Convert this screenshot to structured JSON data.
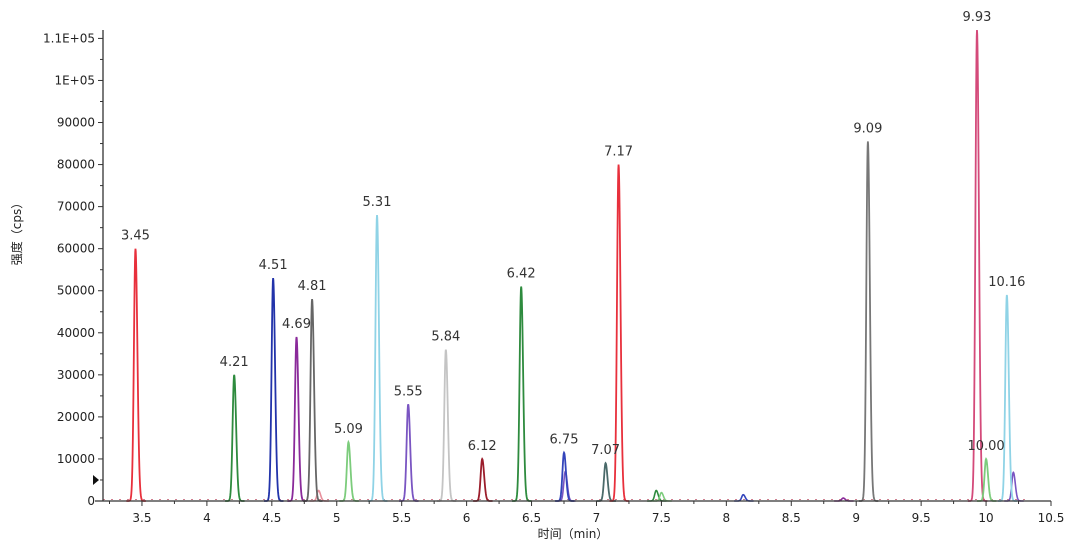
{
  "chart_data": {
    "type": "line",
    "title": "",
    "xlabel": "时间（min）",
    "ylabel": "强度（cps）",
    "xlim": [
      3.2,
      10.5
    ],
    "ylim": [
      0,
      112000
    ],
    "grid": false,
    "x_ticks": [
      "3.5",
      "4",
      "4.5",
      "5",
      "5.5",
      "6",
      "6.5",
      "7",
      "7.5",
      "8",
      "8.5",
      "9",
      "9.5",
      "10",
      "10.5"
    ],
    "x_tick_values": [
      3.5,
      4,
      4.5,
      5,
      5.5,
      6,
      6.5,
      7,
      7.5,
      8,
      8.5,
      9,
      9.5,
      10,
      10.5
    ],
    "y_ticks": [
      "0",
      "10000",
      "20000",
      "30000",
      "40000",
      "50000",
      "60000",
      "70000",
      "80000",
      "90000",
      "1E+05",
      "1.1E+05"
    ],
    "y_tick_values": [
      0,
      10000,
      20000,
      30000,
      40000,
      50000,
      60000,
      70000,
      80000,
      90000,
      100000,
      110000
    ],
    "peaks": [
      {
        "x": 3.45,
        "y": 60000,
        "label": "3.45",
        "color": "#e8303c"
      },
      {
        "x": 4.21,
        "y": 30000,
        "label": "4.21",
        "color": "#2e8b3e"
      },
      {
        "x": 4.51,
        "y": 53000,
        "label": "4.51",
        "color": "#2233aa"
      },
      {
        "x": 4.69,
        "y": 39000,
        "label": "4.69",
        "color": "#8a2a9a"
      },
      {
        "x": 4.81,
        "y": 48000,
        "label": "4.81",
        "color": "#666666"
      },
      {
        "x": 5.09,
        "y": 14000,
        "label": "5.09",
        "color": "#7ccc7c"
      },
      {
        "x": 5.31,
        "y": 68000,
        "label": "5.31",
        "color": "#8fd3e6"
      },
      {
        "x": 5.55,
        "y": 23000,
        "label": "5.55",
        "color": "#7a55c2"
      },
      {
        "x": 5.84,
        "y": 36000,
        "label": "5.84",
        "color": "#c4c4c4"
      },
      {
        "x": 6.12,
        "y": 10000,
        "label": "6.12",
        "color": "#9b1d2b"
      },
      {
        "x": 6.42,
        "y": 51000,
        "label": "6.42",
        "color": "#2e8b3e"
      },
      {
        "x": 6.75,
        "y": 11500,
        "label": "6.75",
        "color": "#3344bb"
      },
      {
        "x": 7.07,
        "y": 9000,
        "label": "7.07",
        "color": "#4a6a6a"
      },
      {
        "x": 7.17,
        "y": 80000,
        "label": "7.17",
        "color": "#e8303c"
      },
      {
        "x": 9.09,
        "y": 85500,
        "label": "9.09",
        "color": "#777777"
      },
      {
        "x": 9.93,
        "y": 112000,
        "label": "9.93",
        "color": "#d44a7a"
      },
      {
        "x": 10.0,
        "y": 10000,
        "label": "10.00",
        "color": "#7ccc7c"
      },
      {
        "x": 10.16,
        "y": 49000,
        "label": "10.16",
        "color": "#8fd3e6"
      }
    ],
    "minor_peaks": [
      {
        "x": 4.86,
        "y": 2500,
        "color": "#e8909c"
      },
      {
        "x": 6.76,
        "y": 7000,
        "color": "#7a55c2"
      },
      {
        "x": 7.46,
        "y": 2500,
        "color": "#2e8b3e"
      },
      {
        "x": 7.5,
        "y": 2000,
        "color": "#7ccc7c"
      },
      {
        "x": 8.13,
        "y": 1500,
        "color": "#3344bb"
      },
      {
        "x": 8.9,
        "y": 700,
        "color": "#8a2a9a"
      },
      {
        "x": 10.21,
        "y": 6800,
        "color": "#7a55c2"
      }
    ]
  }
}
